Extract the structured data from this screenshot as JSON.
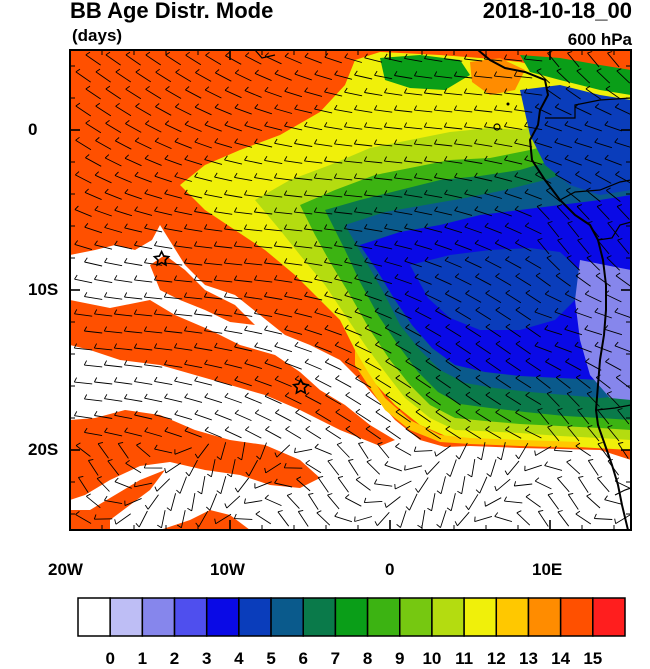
{
  "header": {
    "title": "BB Age Distr. Mode",
    "units": "(days)",
    "datetime": "2018-10-18_00",
    "level": "600 hPa"
  },
  "axes": {
    "x_ticks": [
      "20W",
      "10W",
      "0",
      "10E"
    ],
    "y_ticks": [
      "0",
      "10S",
      "20S"
    ]
  },
  "map": {
    "lon_range": [
      -20,
      15
    ],
    "lat_range": [
      -25,
      5
    ],
    "overlays": [
      "wind-barbs",
      "coastline",
      "country-borders"
    ],
    "markers": [
      {
        "name": "star-site-north",
        "lon": -14.3,
        "lat": -8.0
      },
      {
        "name": "star-site-south",
        "lon": -5.6,
        "lat": -16.0
      }
    ]
  },
  "colorbar": {
    "labels": [
      "0",
      "1",
      "2",
      "3",
      "4",
      "5",
      "6",
      "7",
      "8",
      "9",
      "10",
      "11",
      "12",
      "13",
      "14",
      "15"
    ],
    "colors": [
      "#ffffff",
      "#bebef5",
      "#8686ec",
      "#4f4fee",
      "#0a0ae6",
      "#0a3dbb",
      "#0a5a8c",
      "#0a7a4a",
      "#0a9e18",
      "#3cb312",
      "#76c811",
      "#b4dc10",
      "#f0f00a",
      "#ffc800",
      "#ff8c00",
      "#ff5000",
      "#ff1e1e"
    ]
  }
}
